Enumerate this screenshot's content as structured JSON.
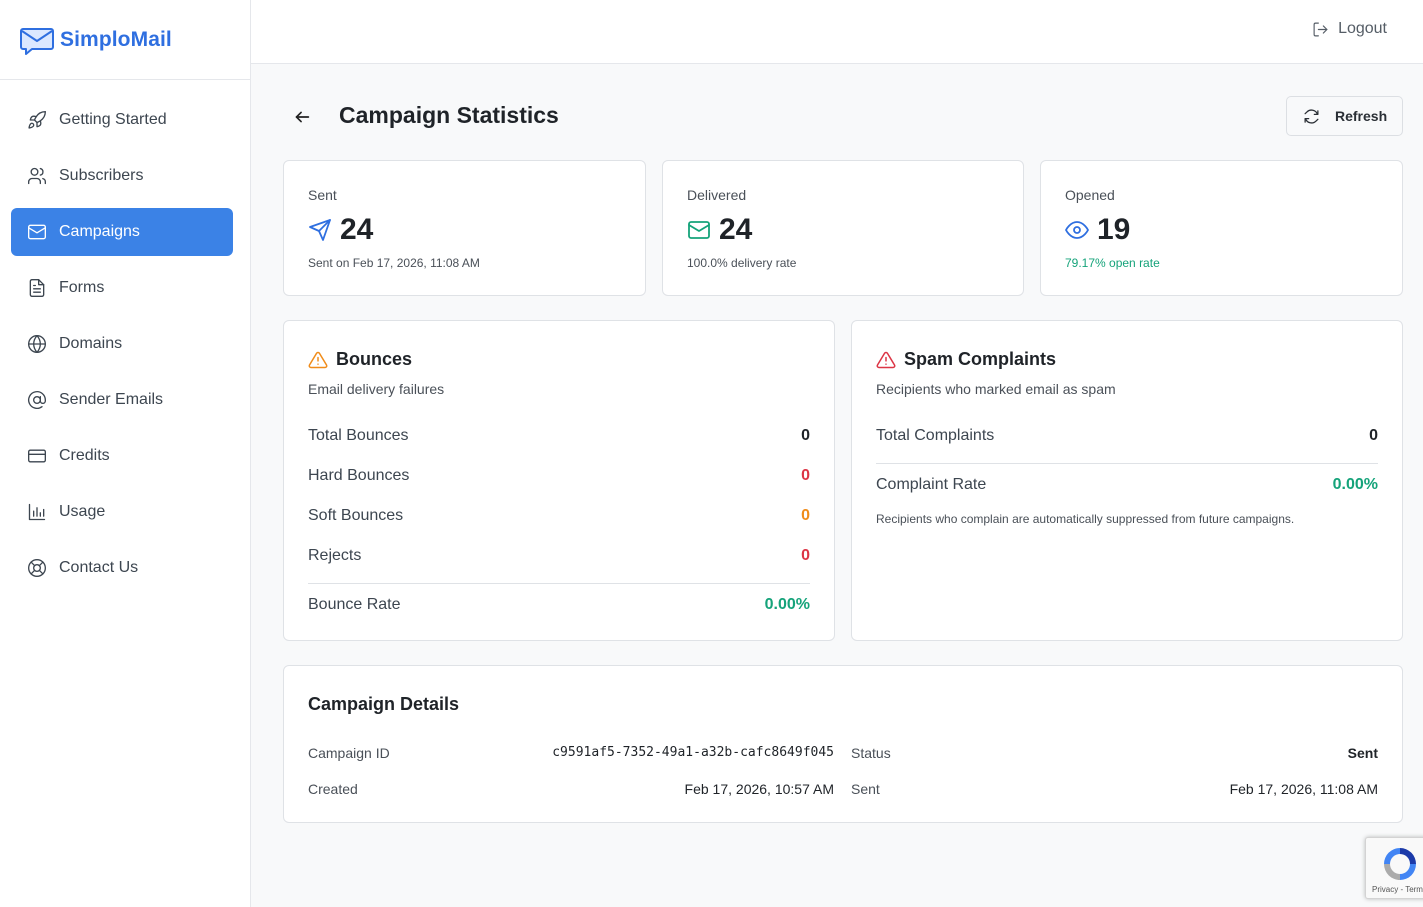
{
  "brand": {
    "name": "SimploMail",
    "color": "#2f6fe0"
  },
  "sidebar": {
    "items": [
      {
        "label": "Getting Started",
        "icon": "rocket-icon",
        "active": false
      },
      {
        "label": "Subscribers",
        "icon": "users-icon",
        "active": false
      },
      {
        "label": "Campaigns",
        "icon": "mail-icon",
        "active": true
      },
      {
        "label": "Forms",
        "icon": "file-text-icon",
        "active": false
      },
      {
        "label": "Domains",
        "icon": "globe-icon",
        "active": false
      },
      {
        "label": "Sender Emails",
        "icon": "at-sign-icon",
        "active": false
      },
      {
        "label": "Credits",
        "icon": "credit-card-icon",
        "active": false
      },
      {
        "label": "Usage",
        "icon": "bar-chart-icon",
        "active": false
      },
      {
        "label": "Contact Us",
        "icon": "lifebuoy-icon",
        "active": false
      }
    ]
  },
  "header": {
    "logout_label": "Logout"
  },
  "page": {
    "title": "Campaign Statistics",
    "refresh_label": "Refresh"
  },
  "stats": {
    "sent": {
      "label": "Sent",
      "value": "24",
      "sub": "Sent on Feb 17, 2026, 11:08 AM"
    },
    "delivered": {
      "label": "Delivered",
      "value": "24",
      "sub": "100.0% delivery rate"
    },
    "opened": {
      "label": "Opened",
      "value": "19",
      "sub": "79.17% open rate"
    }
  },
  "bounces": {
    "title": "Bounces",
    "subtitle": "Email delivery failures",
    "rows": [
      {
        "label": "Total Bounces",
        "value": "0"
      },
      {
        "label": "Hard Bounces",
        "value": "0"
      },
      {
        "label": "Soft Bounces",
        "value": "0"
      },
      {
        "label": "Rejects",
        "value": "0"
      }
    ],
    "rate_label": "Bounce Rate",
    "rate_value": "0.00%"
  },
  "spam": {
    "title": "Spam Complaints",
    "subtitle": "Recipients who marked email as spam",
    "total_label": "Total Complaints",
    "total_value": "0",
    "rate_label": "Complaint Rate",
    "rate_value": "0.00%",
    "note": "Recipients who complain are automatically suppressed from future campaigns."
  },
  "details": {
    "title": "Campaign Details",
    "campaign_id_label": "Campaign ID",
    "campaign_id": "c9591af5-7352-49a1-a32b-cafc8649f045",
    "status_label": "Status",
    "status": "Sent",
    "created_label": "Created",
    "created": "Feb 17, 2026, 10:57 AM",
    "sent_label": "Sent",
    "sent": "Feb 17, 2026, 11:08 AM"
  },
  "recaptcha": {
    "text": "Privacy - Terms"
  },
  "colors": {
    "accent": "#3b82e6",
    "success": "#15a37a",
    "danger": "#dc3545",
    "warning": "#f08c1a"
  }
}
